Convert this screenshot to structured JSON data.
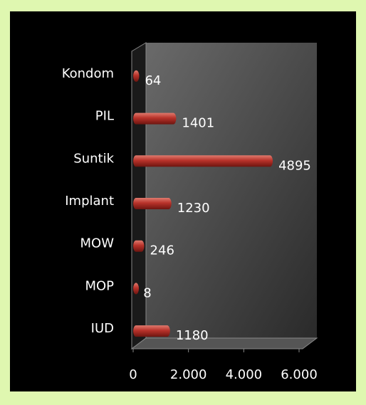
{
  "chart_data": {
    "type": "bar",
    "orientation": "horizontal",
    "categories": [
      "Kondom",
      "PIL",
      "Suntik",
      "Implant",
      "MOW",
      "MOP",
      "IUD"
    ],
    "values": [
      64,
      1401,
      4895,
      1230,
      246,
      8,
      1180
    ],
    "color": "#c0392b",
    "xlim": [
      0,
      6000
    ],
    "xticks": [
      0,
      {
        "value": 2000,
        "label": "2.000"
      },
      {
        "value": 4000,
        "label": "4.000"
      },
      {
        "value": 6000,
        "label": "6.000"
      }
    ]
  }
}
